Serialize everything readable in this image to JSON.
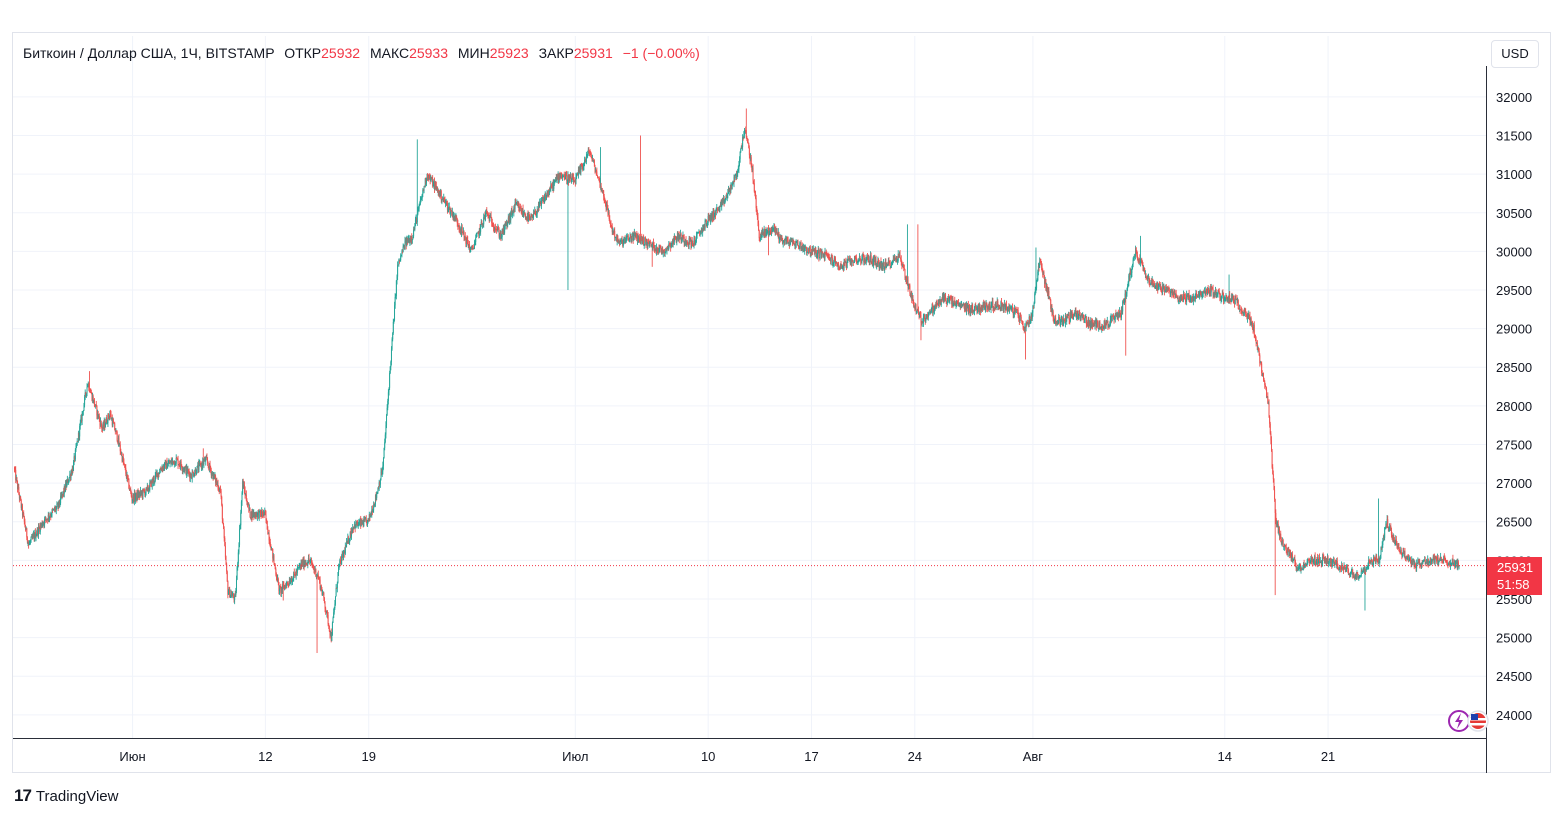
{
  "legend": {
    "symbol": "Биткоин / Доллар США, 1Ч, BITSTAMP",
    "open_label": "ОТКР",
    "open_value": "25932",
    "high_label": "МАКС",
    "high_value": "25933",
    "low_label": "МИН",
    "low_value": "25923",
    "close_label": "ЗАКР",
    "close_value": "25931",
    "change": "−1 (−0.00%)"
  },
  "currency_button": "USD",
  "last_price": {
    "value": "25931",
    "countdown": "51:58"
  },
  "brand": {
    "logo": "17",
    "name": "TradingView"
  },
  "colors": {
    "up": "#26a69a",
    "down": "#ef5350",
    "grid": "#f0f3fa",
    "price_tag": "#f23645"
  },
  "chart_data": {
    "type": "candlestick",
    "interval": "1H",
    "ylim": [
      23700,
      32400
    ],
    "y_ticks": [
      24000,
      24500,
      25000,
      25500,
      26000,
      26500,
      27000,
      27500,
      28000,
      28500,
      29000,
      29500,
      30000,
      30500,
      31000,
      31500,
      32000
    ],
    "x_ticks": [
      {
        "label": "Июн",
        "day": 3
      },
      {
        "label": "12",
        "day": 12
      },
      {
        "label": "19",
        "day": 19
      },
      {
        "label": "Июл",
        "day": 33
      },
      {
        "label": "10",
        "day": 42
      },
      {
        "label": "17",
        "day": 49
      },
      {
        "label": "24",
        "day": 56
      },
      {
        "label": "Авг",
        "day": 64
      },
      {
        "label": "14",
        "day": 77
      },
      {
        "label": "21",
        "day": 84
      }
    ],
    "x_range_days": [
      -5.1,
      94.7
    ],
    "last_price": 25931,
    "path_days": [
      -5,
      -4.5,
      -4,
      -3,
      -2,
      -1,
      0,
      1,
      1.5,
      2,
      2.5,
      3,
      4,
      5,
      6,
      7,
      8,
      9,
      9.5,
      10,
      10.5,
      11,
      12,
      13,
      14,
      14.5,
      15,
      15.3,
      15.6,
      16,
      16.5,
      17,
      18,
      19,
      19.5,
      20,
      20.5,
      21,
      21.5,
      22,
      23,
      24,
      25,
      26,
      27,
      28,
      29,
      30,
      31,
      32,
      33,
      34,
      34.5,
      35,
      35.5,
      36,
      37,
      38,
      39,
      40,
      41,
      42,
      43,
      44,
      44.5,
      45,
      45.5,
      46,
      46.5,
      47,
      48,
      49,
      50,
      51,
      52,
      53,
      54,
      55,
      56,
      56.5,
      57,
      58,
      59,
      60,
      61,
      62,
      63,
      63.5,
      64,
      64.5,
      65,
      65.5,
      66,
      67,
      68,
      69,
      70,
      70.5,
      71,
      72,
      73,
      74,
      75,
      76,
      77,
      77.5,
      78,
      78.5,
      79,
      79.5,
      80,
      80.5,
      81,
      82,
      83,
      84,
      85,
      86,
      87,
      87.5,
      88,
      89,
      90,
      91,
      92,
      92.9
    ],
    "path_prices": [
      27200,
      26700,
      26200,
      26500,
      26700,
      27200,
      28300,
      27700,
      27900,
      27600,
      27200,
      26800,
      26900,
      27200,
      27300,
      27100,
      27300,
      26900,
      25600,
      25500,
      27000,
      26600,
      26600,
      25600,
      25800,
      25950,
      26000,
      25900,
      25800,
      25500,
      25000,
      25900,
      26450,
      26500,
      26800,
      27200,
      28500,
      29800,
      30100,
      30200,
      31000,
      30700,
      30400,
      30000,
      30500,
      30200,
      30600,
      30400,
      30700,
      31000,
      30900,
      31300,
      31000,
      30700,
      30300,
      30100,
      30200,
      30100,
      30000,
      30200,
      30100,
      30400,
      30600,
      31000,
      31600,
      31100,
      30200,
      30250,
      30300,
      30150,
      30100,
      30000,
      29950,
      29800,
      29900,
      29900,
      29800,
      29950,
      29300,
      29100,
      29200,
      29400,
      29300,
      29250,
      29300,
      29300,
      29200,
      29000,
      29200,
      29900,
      29500,
      29100,
      29100,
      29200,
      29050,
      29050,
      29200,
      29600,
      30000,
      29600,
      29500,
      29400,
      29400,
      29500,
      29400,
      29400,
      29300,
      29200,
      29000,
      28500,
      28000,
      26500,
      26200,
      25900,
      26000,
      26000,
      25900,
      25800,
      26000,
      26000,
      26500,
      26100,
      25950,
      26000,
      26000,
      25950,
      26000,
      25931
    ],
    "spikes": [
      {
        "day": 0.1,
        "high": 28450
      },
      {
        "day": 7.8,
        "high": 27450
      },
      {
        "day": 13.2,
        "low": 25480
      },
      {
        "day": 15.5,
        "low": 24800
      },
      {
        "day": 22.3,
        "high": 31450
      },
      {
        "day": 23.2,
        "high": 30800
      },
      {
        "day": 32.5,
        "low": 29500
      },
      {
        "day": 34.7,
        "high": 31350
      },
      {
        "day": 37.4,
        "high": 31500
      },
      {
        "day": 38.2,
        "low": 29800
      },
      {
        "day": 44.6,
        "high": 31850
      },
      {
        "day": 46.1,
        "low": 29950
      },
      {
        "day": 55.5,
        "high": 30350
      },
      {
        "day": 56.2,
        "high": 30350
      },
      {
        "day": 56.4,
        "low": 28850
      },
      {
        "day": 63.5,
        "low": 28600
      },
      {
        "day": 64.2,
        "high": 30050
      },
      {
        "day": 70.3,
        "low": 28650
      },
      {
        "day": 71.3,
        "high": 30200
      },
      {
        "day": 77.3,
        "high": 29700
      },
      {
        "day": 80.4,
        "low": 25550
      },
      {
        "day": 86.5,
        "low": 25350
      },
      {
        "day": 87.4,
        "high": 26800
      }
    ]
  }
}
